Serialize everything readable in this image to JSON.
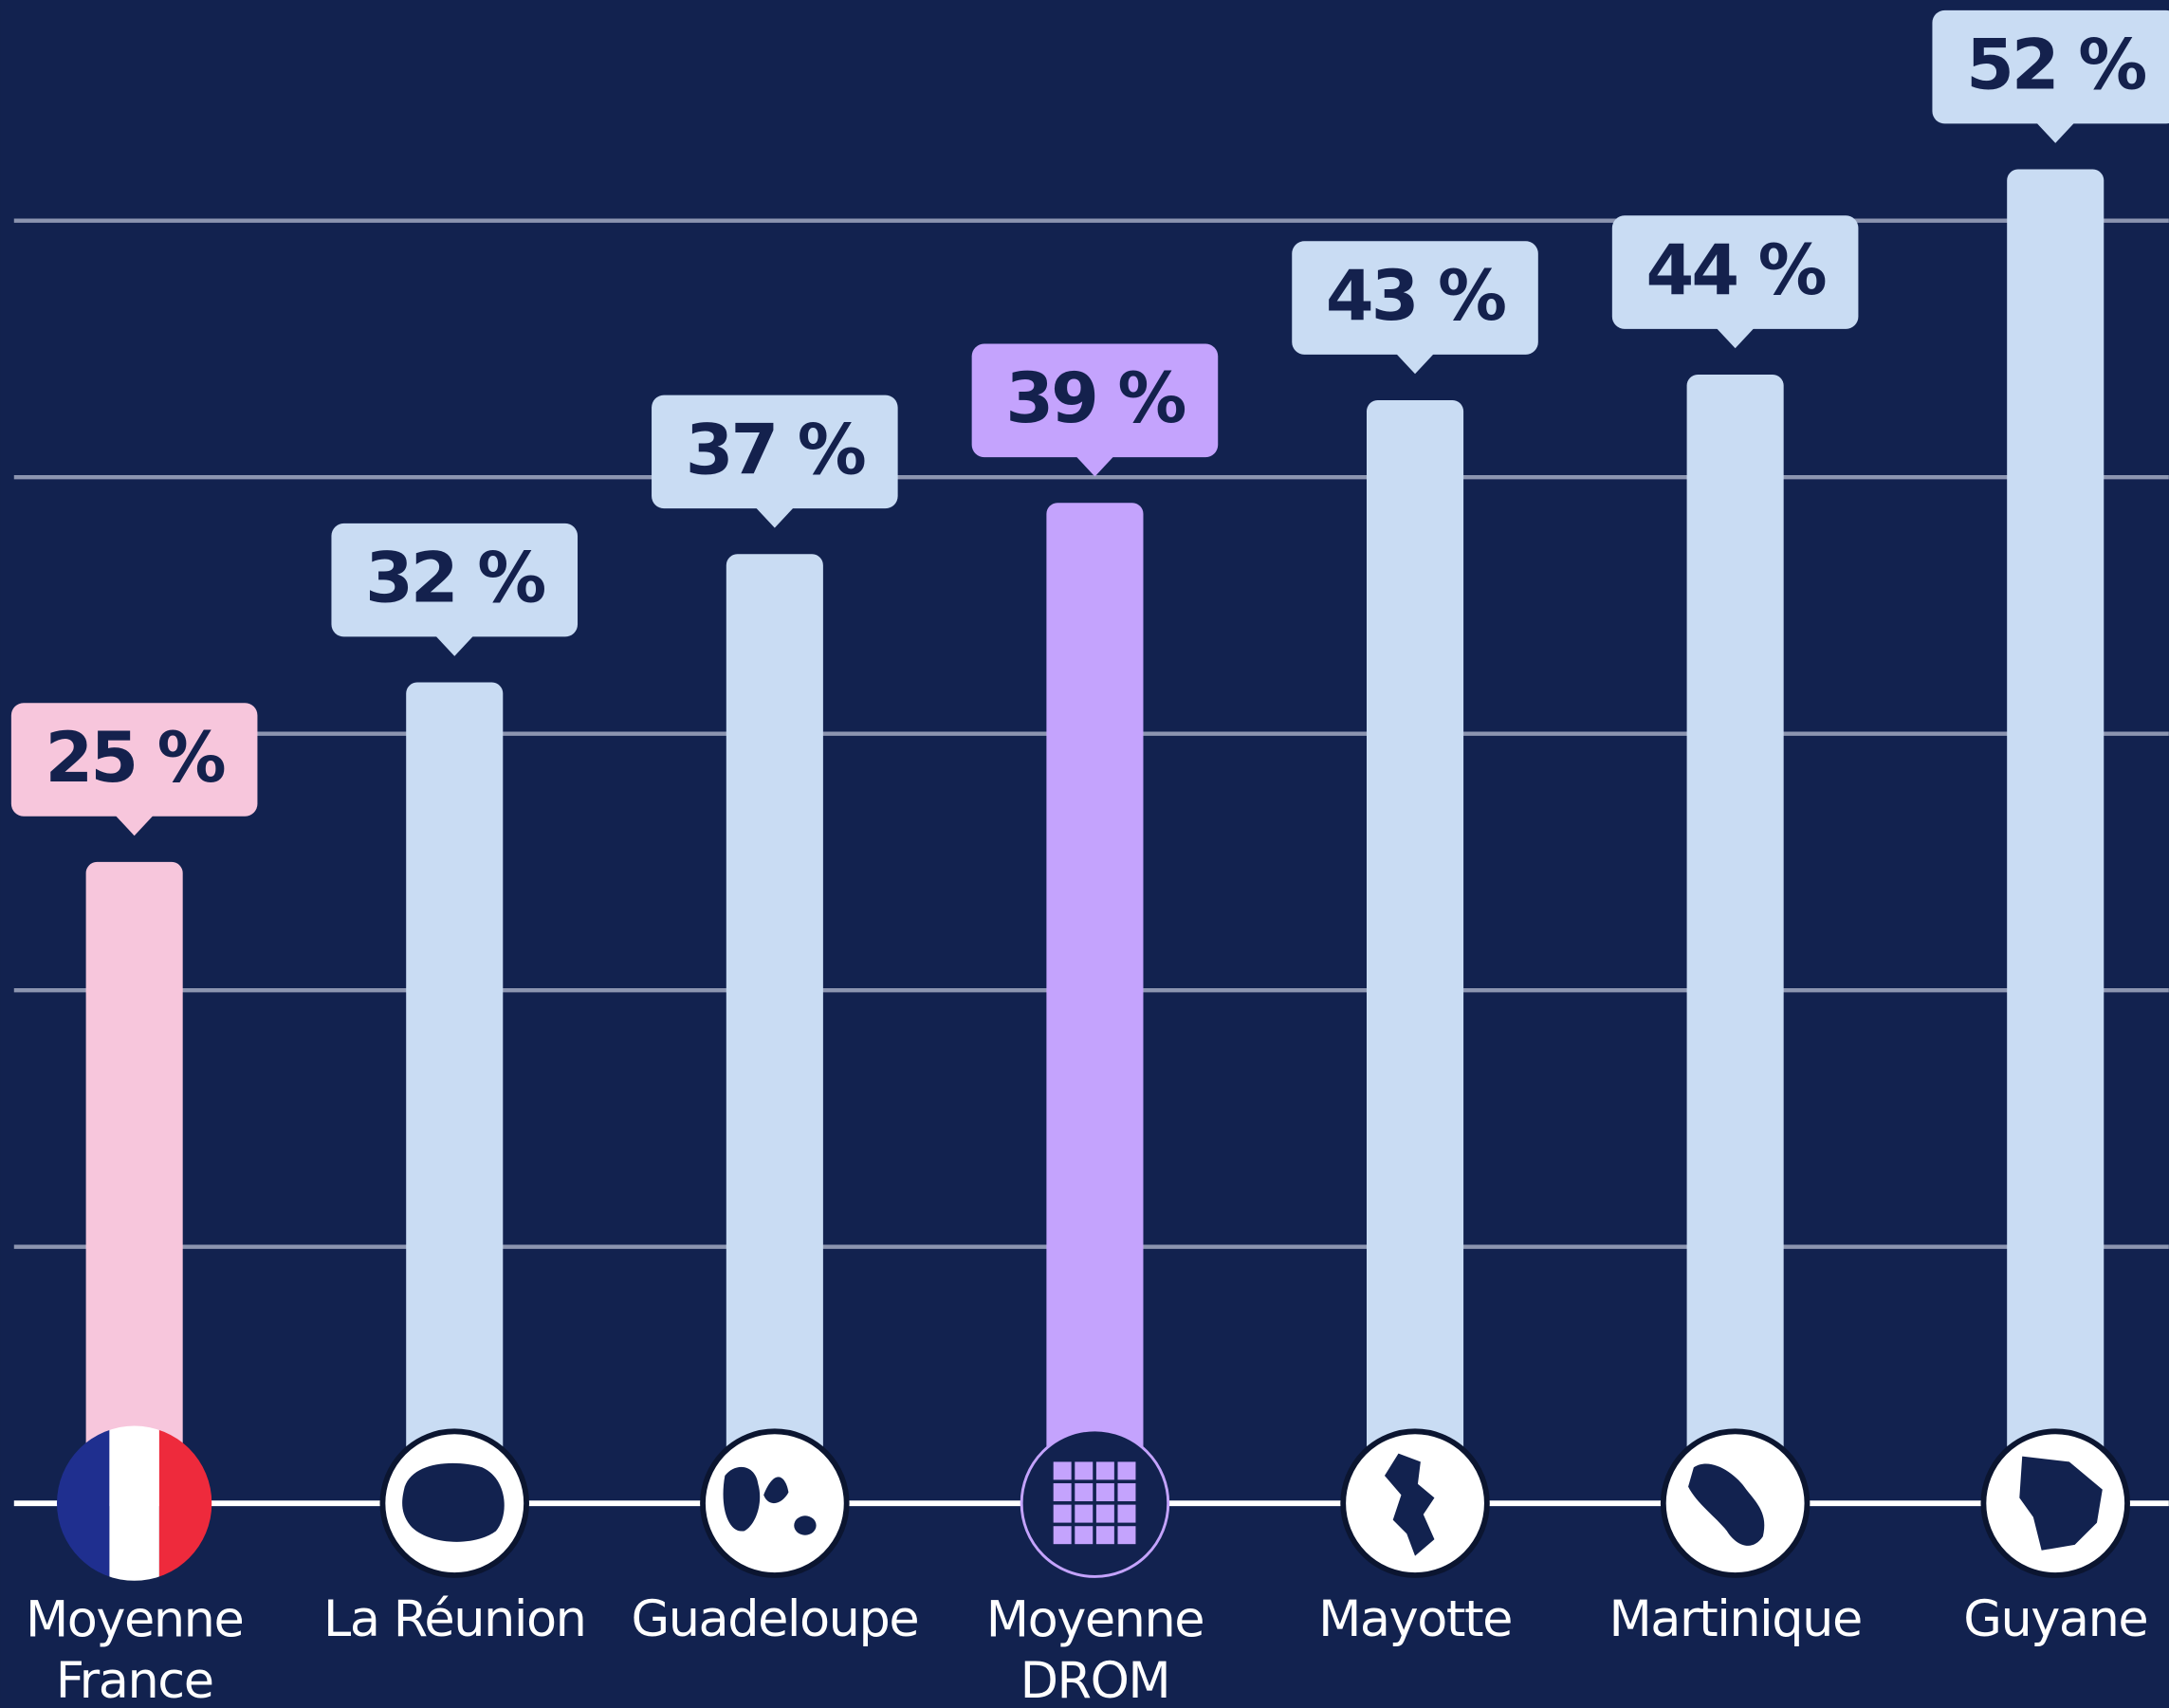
{
  "chart_data": {
    "type": "bar",
    "categories": [
      "Moyenne France",
      "La Réunion",
      "Guadeloupe",
      "Moyenne DROM",
      "Mayotte",
      "Martinique",
      "Guyane"
    ],
    "values": [
      25,
      32,
      37,
      39,
      43,
      44,
      52
    ],
    "value_labels": [
      "25 %",
      "32 %",
      "37 %",
      "39 %",
      "43 %",
      "44 %",
      "52 %"
    ],
    "colors": [
      "#f7c6dc",
      "#c9dcf3",
      "#c9dcf3",
      "#c4a3fd",
      "#c9dcf3",
      "#c9dcf3",
      "#c9dcf3"
    ],
    "ylim": [
      0,
      58.6
    ],
    "yticks": [
      0,
      10,
      20,
      30,
      40,
      50
    ],
    "grid": true
  }
}
